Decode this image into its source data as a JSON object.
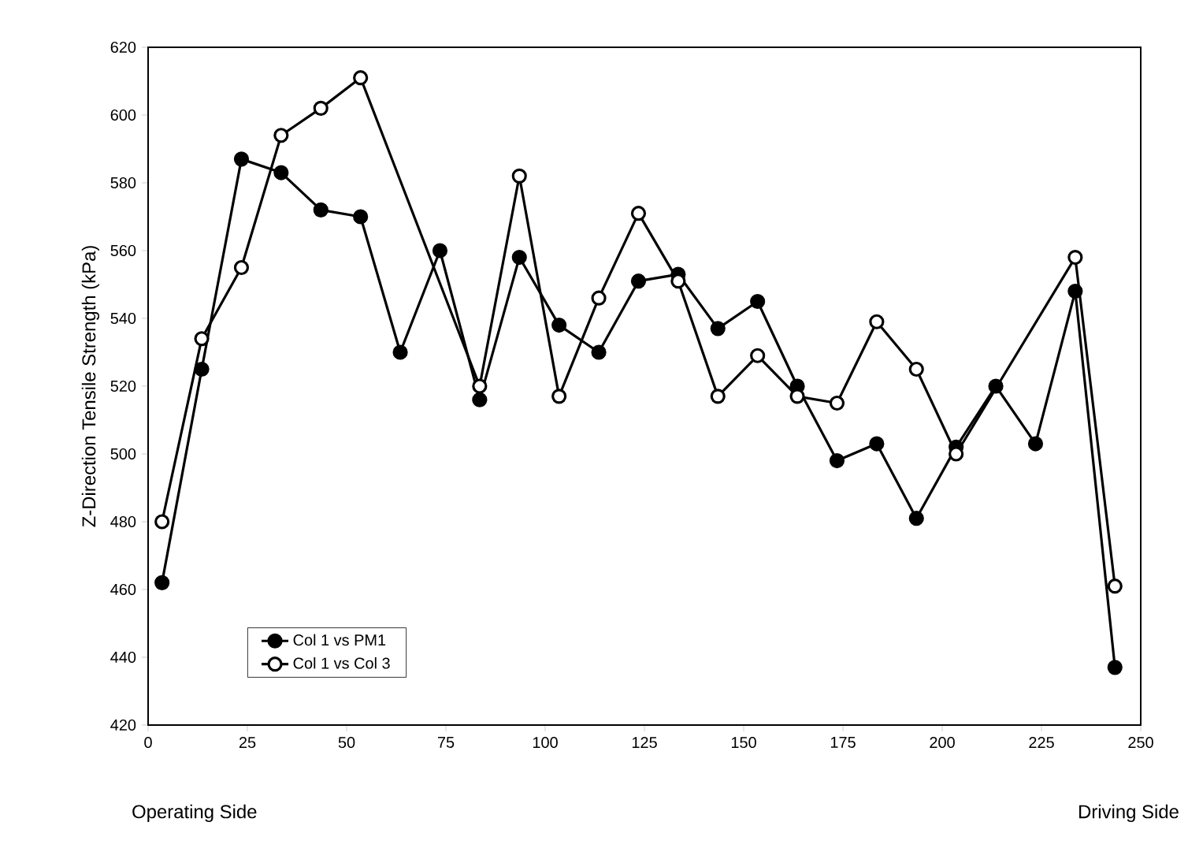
{
  "chart_data": {
    "type": "line",
    "ylabel": "Z-Direction Tensile Strength (kPa)",
    "annotations": [
      "Operating Side",
      "Driving Side"
    ],
    "series": [
      {
        "name": "Col 1 vs PM1",
        "color": "#000000",
        "x": [
          3.5,
          13.5,
          23.5,
          33.5,
          43.5,
          53.5,
          63.5,
          73.5,
          83.5,
          93.5,
          103.5,
          113.5,
          123.5,
          133.5,
          143.5,
          153.5,
          163.5,
          173.5,
          183.5,
          193.5,
          203.5,
          213.5,
          223.5,
          233.5,
          243.5
        ],
        "values": [
          462,
          525,
          587,
          583,
          572,
          570,
          530,
          560,
          516,
          558,
          538,
          530,
          551,
          553,
          537,
          545,
          520,
          498,
          503,
          481,
          502,
          520,
          503,
          548,
          437
        ]
      },
      {
        "name": "Col 1 vs Col 3",
        "color": "#ffffff",
        "x": [
          3.5,
          13.5,
          23.5,
          33.5,
          43.5,
          53.5,
          83.5,
          93.5,
          103.5,
          113.5,
          123.5,
          133.5,
          143.5,
          153.5,
          163.5,
          173.5,
          183.5,
          193.5,
          203.5,
          233.5,
          243.5
        ],
        "values": [
          480,
          534,
          555,
          594,
          602,
          611,
          520,
          582,
          517,
          546,
          571,
          551,
          517,
          529,
          517,
          515,
          539,
          525,
          500,
          558,
          461
        ]
      }
    ],
    "xlim": [
      0,
      250
    ],
    "xticks": [
      0,
      25,
      50,
      75,
      100,
      125,
      150,
      175,
      200,
      225,
      250
    ],
    "ylim": [
      420,
      620
    ],
    "yticks": [
      420,
      440,
      460,
      480,
      500,
      520,
      540,
      560,
      580,
      600,
      620
    ],
    "grid": false,
    "legend": "bottom left",
    "marker": "circle",
    "line_style": "solid"
  }
}
